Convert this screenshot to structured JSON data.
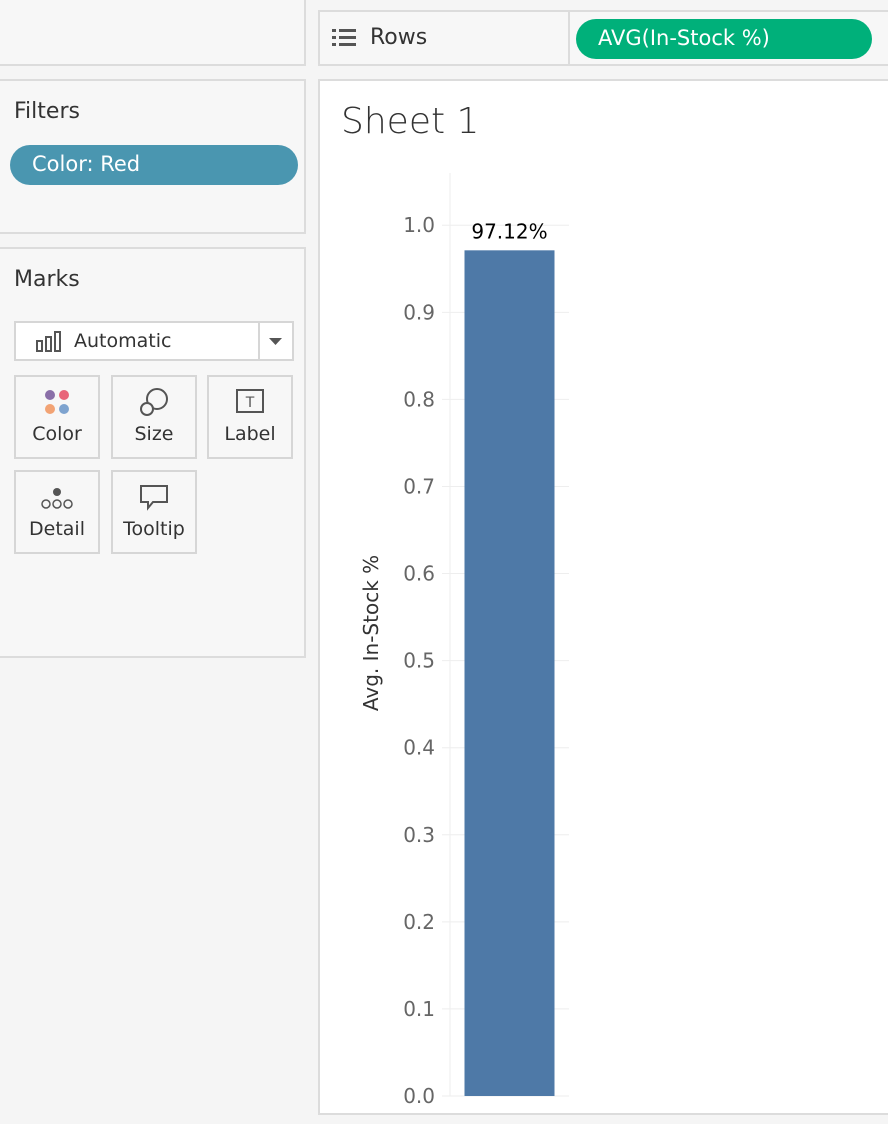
{
  "rows_shelf": {
    "label": "Rows",
    "pill": "AVG(In-Stock %)"
  },
  "filters": {
    "title": "Filters",
    "items": [
      "Color: Red"
    ]
  },
  "marks": {
    "title": "Marks",
    "mark_type": "Automatic",
    "buttons": [
      "Color",
      "Size",
      "Label",
      "Detail",
      "Tooltip"
    ]
  },
  "chart_data": {
    "type": "bar",
    "title": "Sheet 1",
    "y_label": "Avg. In-Stock %",
    "categories": [
      null
    ],
    "values": [
      0.9712
    ],
    "value_labels": [
      "97.12%"
    ],
    "color": "#4e79a7",
    "ylim": [
      0,
      1.06
    ],
    "yticks": [
      {
        "value": 0,
        "label": "0.0"
      },
      0.1,
      0.2,
      0.3,
      0.4,
      0.5,
      0.6,
      0.7,
      0.8,
      0.9,
      {
        "value": 1,
        "label": "1.0"
      }
    ],
    "grid": true
  }
}
